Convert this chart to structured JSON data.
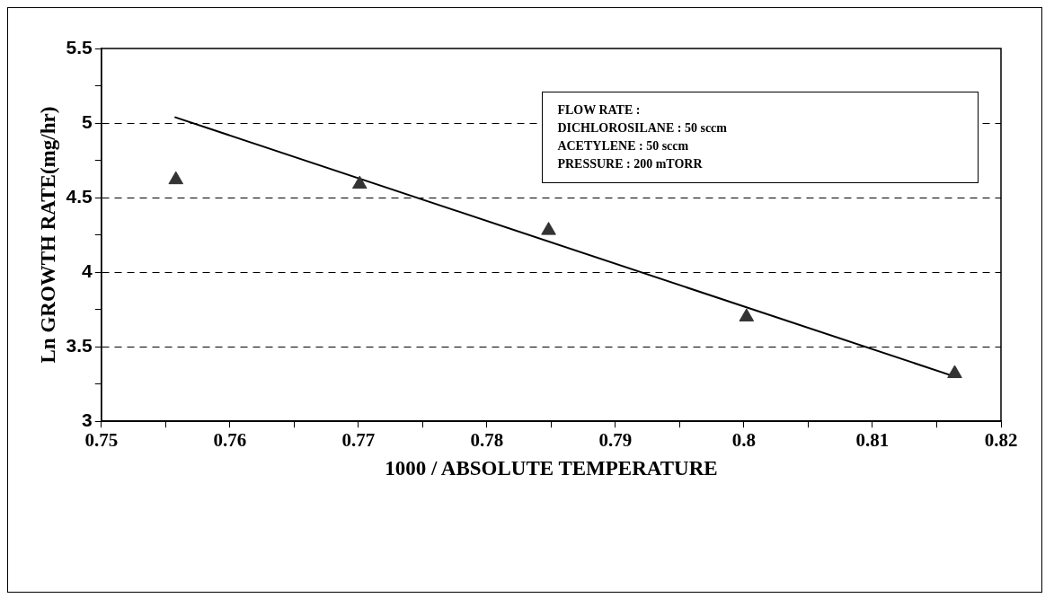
{
  "chart_data": {
    "type": "scatter",
    "xlabel": "1000 / ABSOLUTE TEMPERATURE",
    "ylabel": "Ln GROWTH RATE(mg/hr)",
    "xlim": [
      0.75,
      0.82
    ],
    "xticks": [
      0.75,
      {
        "value": 0.755,
        "label": null
      },
      0.76,
      {
        "value": 0.765,
        "label": null
      },
      0.77,
      {
        "value": 0.775,
        "label": null
      },
      0.78,
      {
        "value": 0.785,
        "label": null
      },
      0.79,
      {
        "value": 0.795,
        "label": null
      },
      0.8,
      {
        "value": 0.805,
        "label": null
      },
      0.81,
      {
        "value": 0.815,
        "label": null
      },
      0.82
    ],
    "ylim": [
      3,
      5.5
    ],
    "yticks": [
      3,
      {
        "value": 3.25,
        "label": null
      },
      3.5,
      {
        "value": 3.75,
        "label": null
      },
      4,
      {
        "value": 4.25,
        "label": null
      },
      4.5,
      {
        "value": 4.75,
        "label": null
      },
      5,
      {
        "value": 5.25,
        "label": null
      },
      5.5
    ],
    "grid": "y",
    "legend": false,
    "marker": "triangle",
    "series": [
      {
        "color": "#333333",
        "x": [
          0.7558,
          0.7701,
          0.7848,
          0.8002,
          0.8164
        ],
        "values": [
          4.62,
          4.59,
          4.28,
          3.7,
          3.32
        ]
      },
      {
        "type": "line",
        "color": "#000000",
        "marker": "none",
        "x": [
          0.7557,
          0.8164
        ],
        "values": [
          5.04,
          3.3
        ]
      }
    ],
    "annotations": [
      "FLOW RATE :",
      "DICHLOROSILANE : 50 sccm",
      "ACETYLENE : 50 sccm",
      "PRESSURE : 200 mTORR"
    ]
  }
}
